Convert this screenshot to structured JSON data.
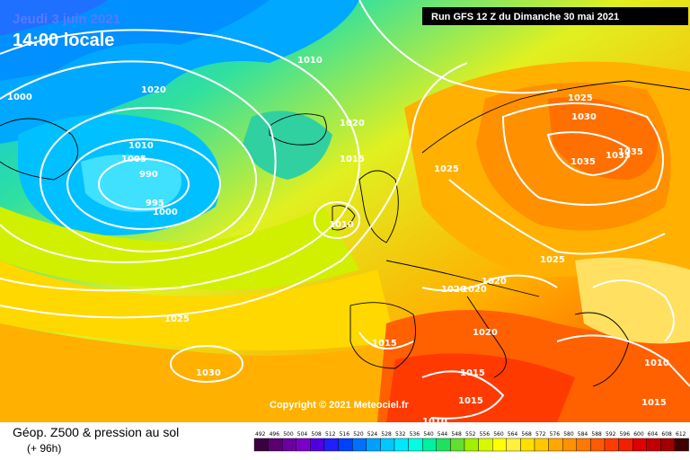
{
  "header": {
    "date": "Jeudi 3 juin 2021",
    "time": "14:00 locale",
    "run": "Run GFS 12 Z du Dimanche 30 mai 2021"
  },
  "copyright": "Copyright © 2021 Meteociel.fr",
  "footer": {
    "title": "Géop. Z500 & pression au sol",
    "subtitle": "(+ 96h)"
  },
  "isobar_labels": [
    "1010",
    "1020",
    "1000",
    "1010",
    "1005",
    "990",
    "995",
    "1000",
    "1020",
    "1015",
    "1010",
    "1025",
    "1025",
    "1030",
    "1035",
    "1035",
    "1035",
    "1025",
    "1020",
    "1020",
    "1020",
    "1015",
    "1020",
    "1015",
    "1015",
    "1010",
    "1010",
    "1015",
    "1030",
    "1025"
  ],
  "legend": {
    "ticks": [
      "492",
      "496",
      "500",
      "504",
      "508",
      "512",
      "516",
      "520",
      "524",
      "528",
      "532",
      "536",
      "540",
      "544",
      "548",
      "552",
      "556",
      "560",
      "564",
      "568",
      "572",
      "576",
      "580",
      "584",
      "588",
      "592",
      "596",
      "600",
      "604",
      "608",
      "612"
    ],
    "colors": [
      "#3a0040",
      "#5a0070",
      "#6a00a0",
      "#7a00c8",
      "#5000e0",
      "#2020ff",
      "#0040ff",
      "#0070ff",
      "#00a0ff",
      "#00c8ff",
      "#00e8ff",
      "#00ffe0",
      "#00f0a0",
      "#20e060",
      "#60e030",
      "#a0f000",
      "#d8f800",
      "#ffff00",
      "#fff040",
      "#ffe000",
      "#ffc800",
      "#ffa800",
      "#ff9000",
      "#ff7800",
      "#ff5a00",
      "#ff3c00",
      "#f02000",
      "#e00000",
      "#c00000",
      "#a00000",
      "#400000"
    ]
  }
}
